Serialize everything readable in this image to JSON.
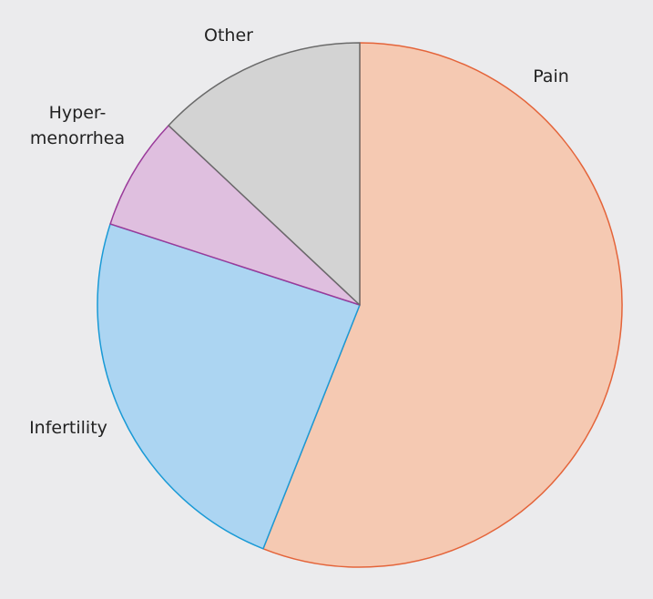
{
  "chart_data": {
    "type": "pie",
    "categories": [
      "Pain",
      "Infertility",
      "Hyper-\nmenorrhea",
      "Other"
    ],
    "values": [
      56,
      24,
      7,
      13
    ],
    "colors": [
      "#f5c9b2",
      "#acd5f2",
      "#dfbfdf",
      "#d3d3d3"
    ],
    "edge_colors": [
      "#e4643a",
      "#1a9ad6",
      "#9a3a9a",
      "#6a6a6a"
    ]
  }
}
